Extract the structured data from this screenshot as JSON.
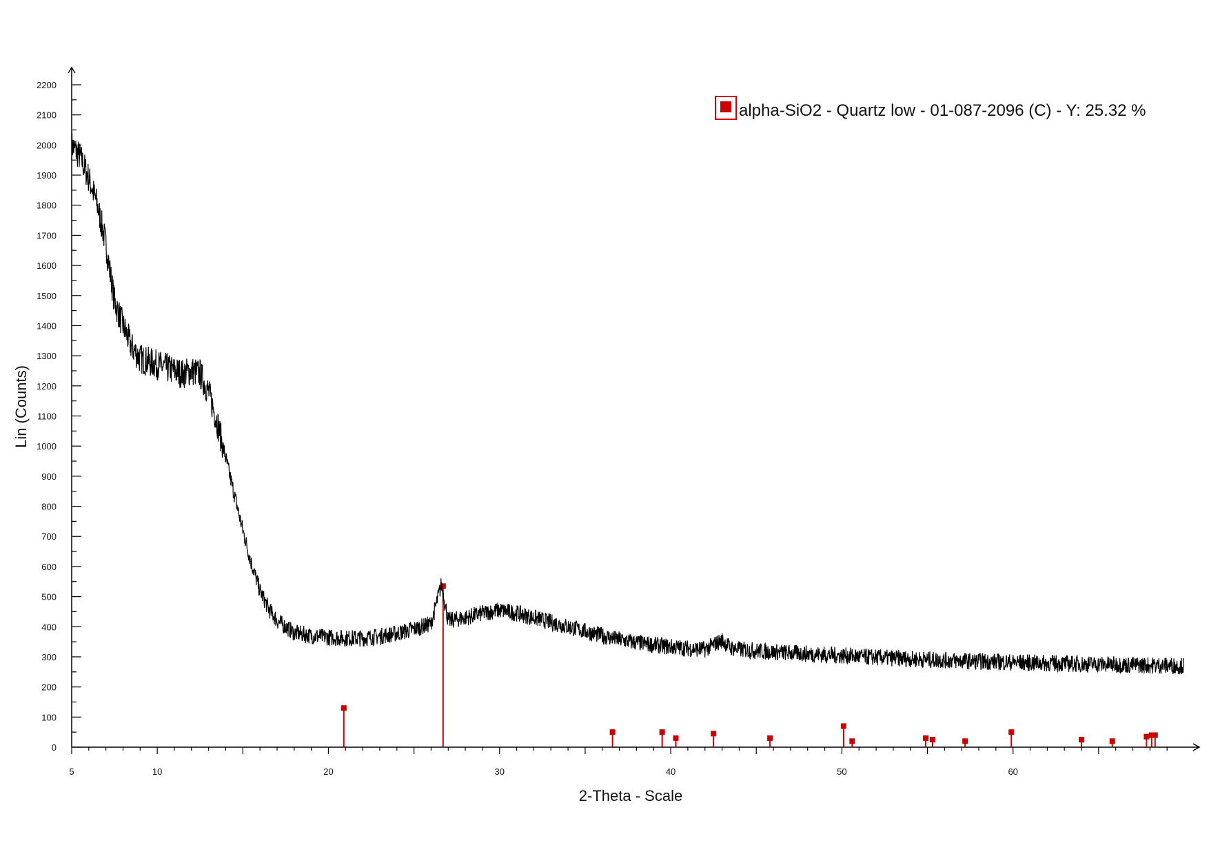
{
  "chart_data": {
    "type": "line",
    "xlabel": "2-Theta - Scale",
    "ylabel": "Lin (Counts)",
    "xlim": [
      5,
      70
    ],
    "ylim": [
      0,
      2200
    ],
    "x_ticks": [
      5,
      10,
      20,
      30,
      40,
      50,
      60
    ],
    "y_ticks": [
      0,
      100,
      200,
      300,
      400,
      500,
      600,
      700,
      800,
      900,
      1000,
      1100,
      1200,
      1300,
      1400,
      1500,
      1600,
      1700,
      1800,
      1900,
      2000,
      2100,
      2200
    ],
    "grid": false,
    "legend_position": "top-right",
    "series": [
      {
        "kind": "line",
        "color": "#000000",
        "points": [
          [
            5.0,
            2000
          ],
          [
            5.5,
            1960
          ],
          [
            6.0,
            1890
          ],
          [
            6.5,
            1800
          ],
          [
            7.0,
            1670
          ],
          [
            7.5,
            1480
          ],
          [
            8.0,
            1400
          ],
          [
            8.5,
            1330
          ],
          [
            9.0,
            1290
          ],
          [
            9.5,
            1280
          ],
          [
            10.0,
            1270
          ],
          [
            10.5,
            1260
          ],
          [
            11.0,
            1250
          ],
          [
            11.5,
            1240
          ],
          [
            12.0,
            1250
          ],
          [
            12.5,
            1240
          ],
          [
            13.0,
            1180
          ],
          [
            13.5,
            1080
          ],
          [
            14.0,
            960
          ],
          [
            14.5,
            840
          ],
          [
            15.0,
            720
          ],
          [
            15.5,
            610
          ],
          [
            16.0,
            520
          ],
          [
            16.5,
            460
          ],
          [
            17.0,
            420
          ],
          [
            18.0,
            380
          ],
          [
            19.0,
            370
          ],
          [
            20.0,
            365
          ],
          [
            21.0,
            362
          ],
          [
            22.0,
            362
          ],
          [
            23.0,
            368
          ],
          [
            24.0,
            378
          ],
          [
            25.0,
            392
          ],
          [
            26.0,
            410
          ],
          [
            26.6,
            540
          ],
          [
            27.0,
            420
          ],
          [
            28.0,
            430
          ],
          [
            29.0,
            445
          ],
          [
            30.0,
            455
          ],
          [
            31.0,
            445
          ],
          [
            32.0,
            430
          ],
          [
            33.0,
            415
          ],
          [
            34.0,
            400
          ],
          [
            35.0,
            385
          ],
          [
            36.0,
            370
          ],
          [
            37.0,
            357
          ],
          [
            38.0,
            347
          ],
          [
            39.0,
            340
          ],
          [
            40.0,
            333
          ],
          [
            41.0,
            328
          ],
          [
            42.0,
            325
          ],
          [
            43.0,
            355
          ],
          [
            43.5,
            330
          ],
          [
            44.0,
            325
          ],
          [
            45.0,
            320
          ],
          [
            46.0,
            316
          ],
          [
            48.0,
            310
          ],
          [
            50.0,
            304
          ],
          [
            52.0,
            298
          ],
          [
            54.0,
            293
          ],
          [
            56.0,
            289
          ],
          [
            58.0,
            285
          ],
          [
            60.0,
            282
          ],
          [
            62.0,
            279
          ],
          [
            64.0,
            276
          ],
          [
            66.0,
            274
          ],
          [
            68.0,
            272
          ],
          [
            70.0,
            270
          ]
        ],
        "noise": 28
      },
      {
        "name": "alpha-SiO2 - Quartz low - 01-087-2096 (C) - Y: 25.32 %",
        "kind": "stick",
        "color": "#cc0000",
        "x": [
          20.9,
          26.7,
          36.6,
          39.5,
          40.3,
          42.5,
          45.8,
          50.1,
          50.6,
          54.9,
          55.3,
          57.2,
          59.9,
          64.0,
          65.8,
          67.8,
          68.1,
          68.3
        ],
        "y": [
          130,
          535,
          50,
          50,
          30,
          45,
          30,
          70,
          20,
          30,
          25,
          20,
          50,
          25,
          20,
          35,
          40,
          40
        ]
      }
    ],
    "legend": [
      {
        "label": "alpha-SiO2 - Quartz low - 01-087-2096 (C) - Y: 25.32 %",
        "color": "#cc0000"
      }
    ]
  }
}
